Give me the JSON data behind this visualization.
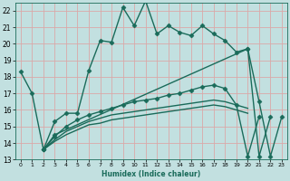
{
  "title": "",
  "xlabel": "Humidex (Indice chaleur)",
  "bg_color": "#c2e0e0",
  "grid_color": "#dba8a8",
  "line_color": "#1a6b5a",
  "xlim": [
    -0.5,
    23.5
  ],
  "ylim": [
    13,
    22.5
  ],
  "xticks": [
    0,
    1,
    2,
    3,
    4,
    5,
    6,
    7,
    8,
    9,
    10,
    11,
    12,
    13,
    14,
    15,
    16,
    17,
    18,
    19,
    20,
    21,
    22,
    23
  ],
  "yticks": [
    13,
    14,
    15,
    16,
    17,
    18,
    19,
    20,
    21,
    22
  ],
  "line1_x": [
    0,
    1,
    2,
    3,
    4,
    5,
    6,
    7,
    8,
    9,
    10,
    11,
    12,
    13,
    14,
    15,
    16,
    17,
    18,
    19,
    20,
    21,
    22
  ],
  "line1_y": [
    18.3,
    17.0,
    13.6,
    15.3,
    15.8,
    15.8,
    18.4,
    20.2,
    20.1,
    22.2,
    21.1,
    22.6,
    20.6,
    21.1,
    20.7,
    20.5,
    21.1,
    20.6,
    20.2,
    19.5,
    19.7,
    13.2,
    15.6
  ],
  "line2_x": [
    2,
    3,
    20,
    21,
    22,
    23
  ],
  "line2_y": [
    13.6,
    14.5,
    19.7,
    16.5,
    13.2,
    15.6
  ],
  "line3_x": [
    2,
    3,
    4,
    5,
    6,
    7,
    8,
    9,
    10,
    11,
    12,
    13,
    14,
    15,
    16,
    17,
    18,
    19,
    20,
    21,
    22,
    23
  ],
  "line3_y": [
    13.6,
    14.4,
    15.0,
    15.4,
    15.7,
    15.9,
    16.1,
    16.3,
    16.5,
    16.6,
    16.7,
    16.9,
    17.0,
    17.2,
    17.4,
    17.5,
    17.3,
    16.3,
    13.2,
    15.6,
    null,
    null
  ],
  "line4_x": [
    2,
    3,
    4,
    5,
    6,
    7,
    8,
    9,
    10,
    11,
    12,
    13,
    14,
    15,
    16,
    17,
    18,
    19,
    20
  ],
  "line4_y": [
    13.6,
    14.2,
    14.7,
    15.0,
    15.3,
    15.5,
    15.7,
    15.8,
    15.9,
    16.0,
    16.1,
    16.2,
    16.3,
    16.4,
    16.5,
    16.6,
    16.5,
    16.3,
    16.1
  ],
  "line5_x": [
    2,
    3,
    4,
    5,
    6,
    7,
    8,
    9,
    10,
    11,
    12,
    13,
    14,
    15,
    16,
    17,
    18,
    19,
    20
  ],
  "line5_y": [
    13.6,
    14.1,
    14.5,
    14.8,
    15.1,
    15.2,
    15.4,
    15.5,
    15.6,
    15.7,
    15.8,
    15.9,
    16.0,
    16.1,
    16.2,
    16.3,
    16.2,
    16.0,
    15.8
  ],
  "marker": "D",
  "markersize": 2.5,
  "linewidth": 1.0
}
